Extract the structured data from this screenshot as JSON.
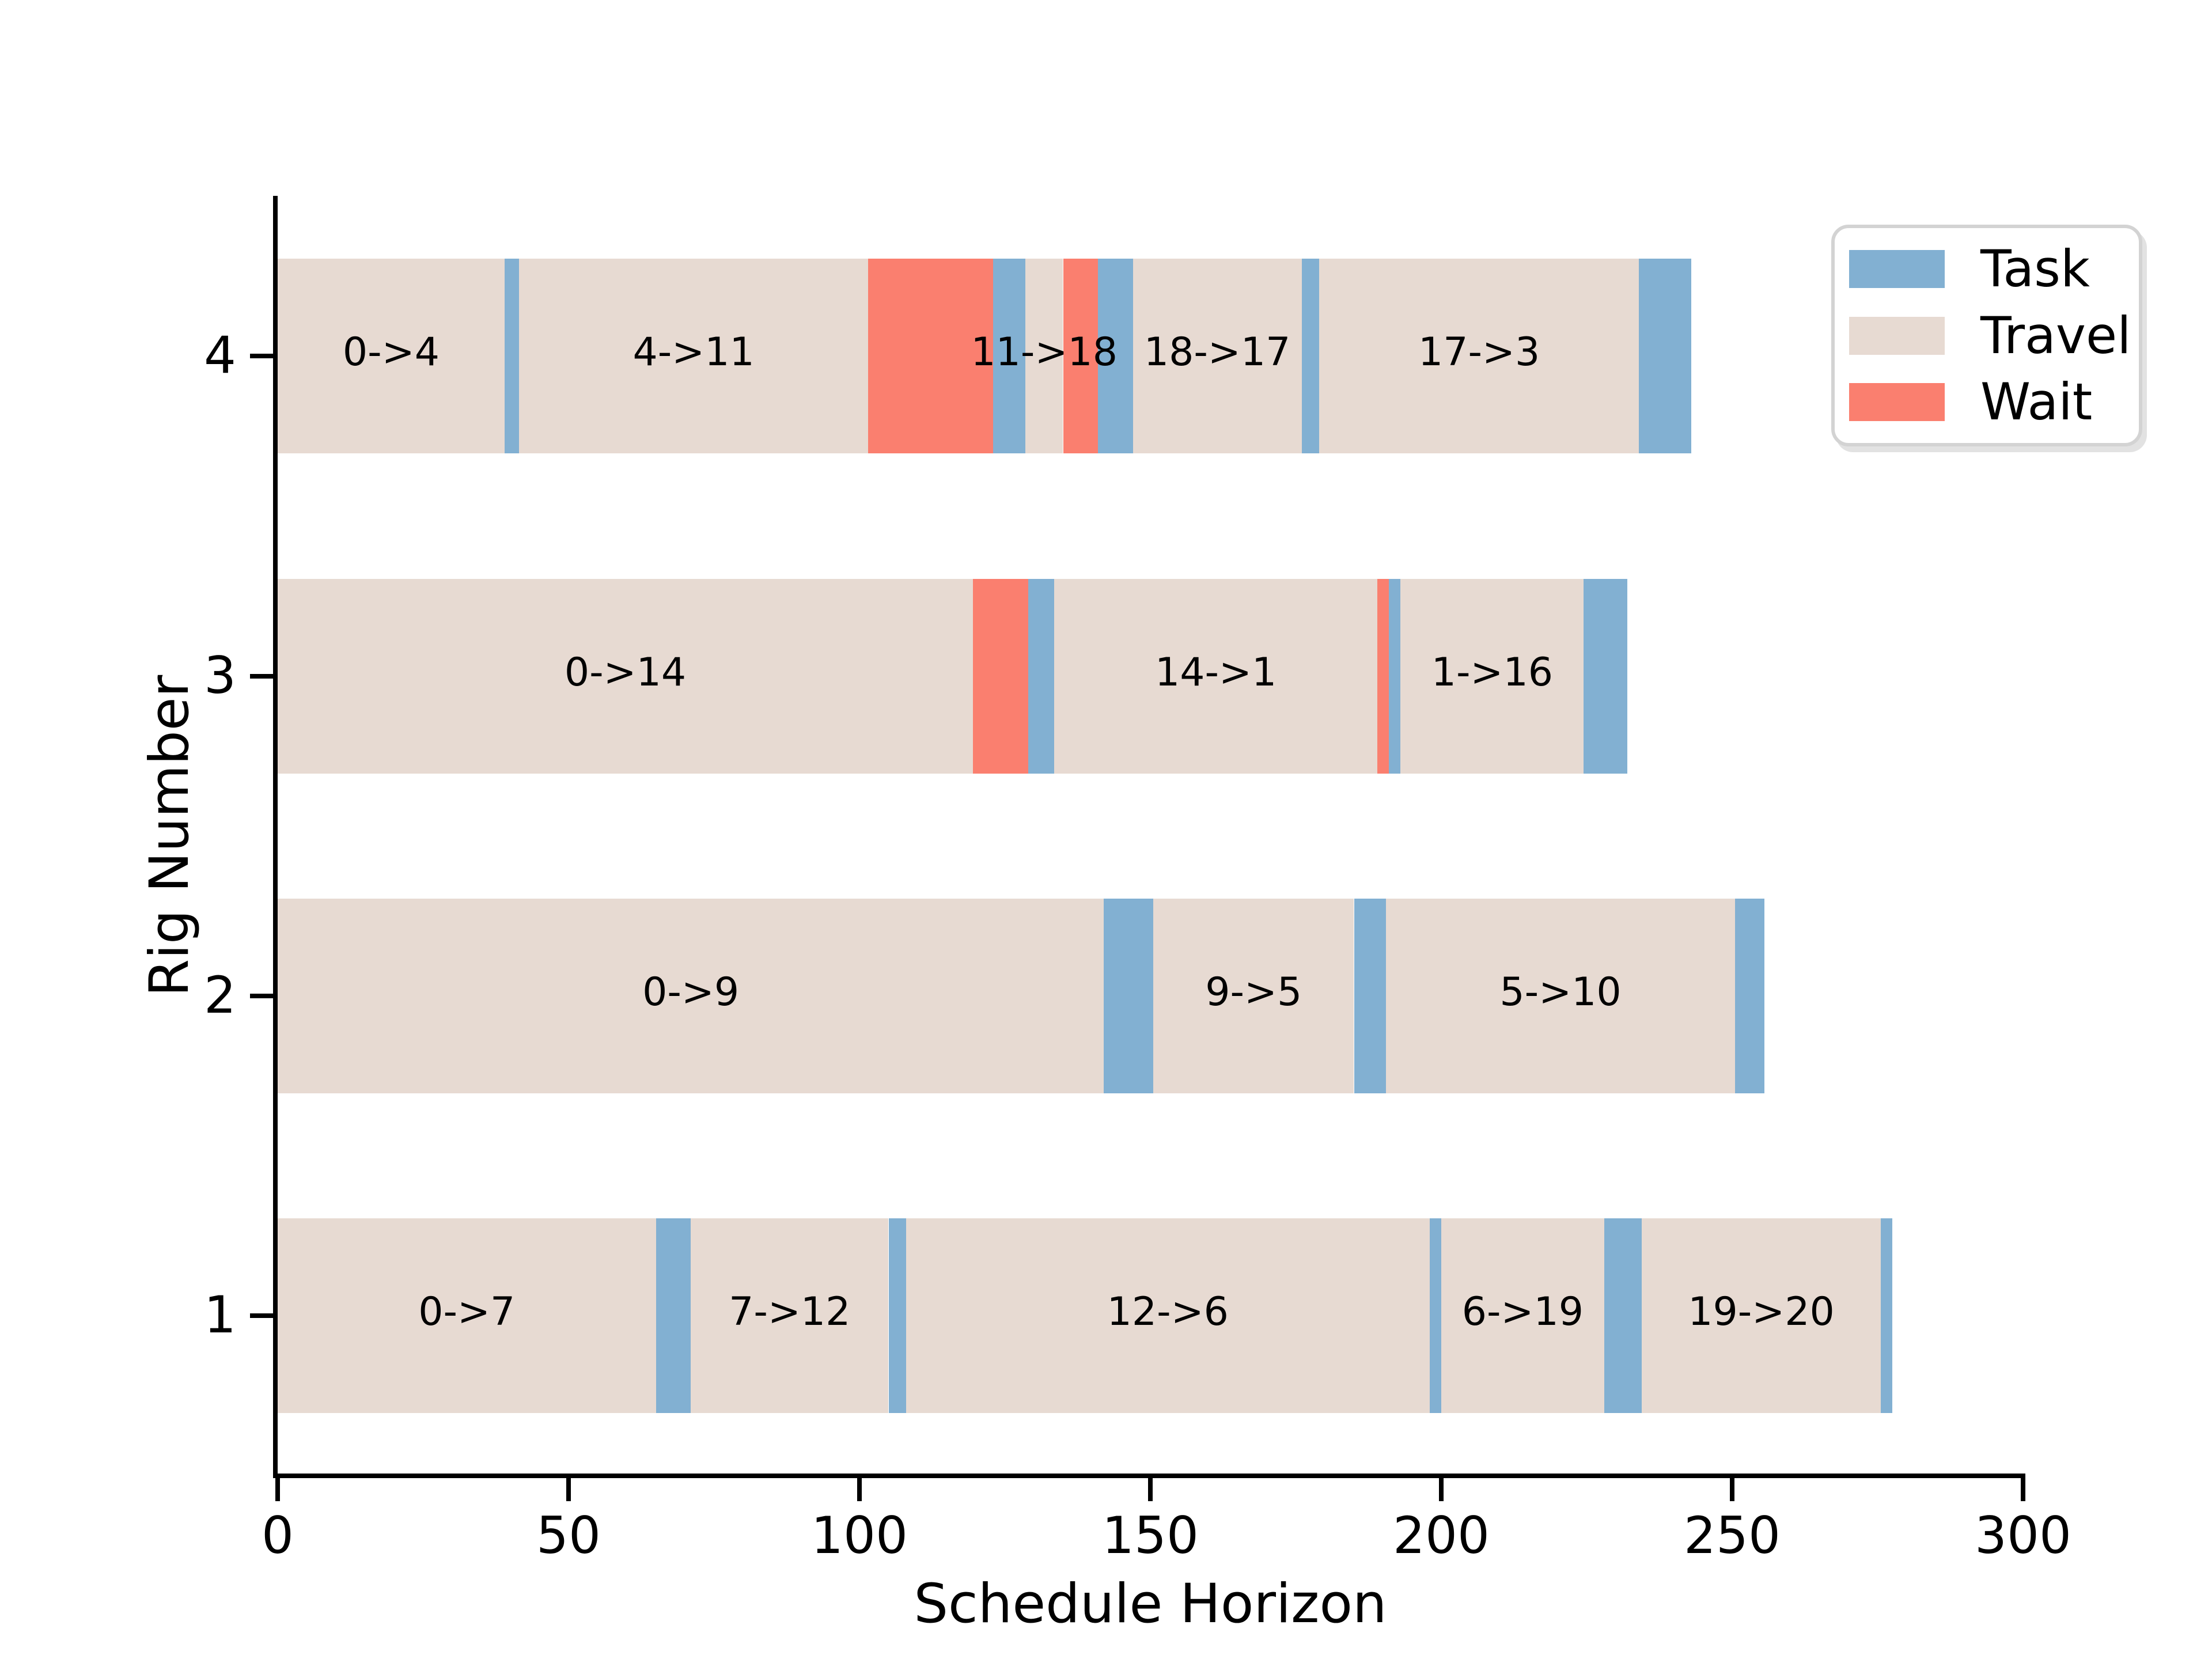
{
  "axes": {
    "xlabel": "Schedule Horizon",
    "ylabel": "Rig Number",
    "x_ticks": [
      0,
      50,
      100,
      150,
      200,
      250,
      300
    ],
    "y_ticks": [
      "1",
      "2",
      "3",
      "4"
    ],
    "xlim": [
      0,
      300
    ]
  },
  "colors": {
    "task": "#82B0D2",
    "travel": "#E7DAD2",
    "wait": "#FA7F6F",
    "axis": "#000000",
    "legend_border": "#D3D3D3"
  },
  "legend": {
    "entries": [
      {
        "label": "Task",
        "color": "#82B0D2"
      },
      {
        "label": "Travel",
        "color": "#E7DAD2"
      },
      {
        "label": "Wait",
        "color": "#FA7F6F"
      }
    ]
  },
  "chart_data": {
    "type": "bar",
    "variant": "gantt-schedule",
    "title": "",
    "xlabel": "Schedule Horizon",
    "ylabel": "Rig Number",
    "xlim": [
      0,
      300
    ],
    "x_ticks": [
      0,
      50,
      100,
      150,
      200,
      250,
      300
    ],
    "legend_entries": [
      "Task",
      "Travel",
      "Wait"
    ],
    "legend_position": "upper right",
    "grid": false,
    "rigs": [
      {
        "rig": 4,
        "segments": [
          {
            "kind": "travel",
            "label": "0->4",
            "start": 0,
            "end": 39
          },
          {
            "kind": "task",
            "label": "",
            "start": 39,
            "end": 41.5
          },
          {
            "kind": "travel",
            "label": "4->11",
            "start": 41.5,
            "end": 101.5
          },
          {
            "kind": "wait",
            "label": "",
            "start": 101.5,
            "end": 123
          },
          {
            "kind": "task",
            "label": "",
            "start": 123,
            "end": 128.5
          },
          {
            "kind": "travel",
            "label": "11->18",
            "start": 128.5,
            "end": 135
          },
          {
            "kind": "wait",
            "label": "",
            "start": 135,
            "end": 141
          },
          {
            "kind": "task",
            "label": "",
            "start": 141,
            "end": 147
          },
          {
            "kind": "travel",
            "label": "18->17",
            "start": 147,
            "end": 176
          },
          {
            "kind": "task",
            "label": "",
            "start": 176,
            "end": 179
          },
          {
            "kind": "travel",
            "label": "17->3",
            "start": 179,
            "end": 234
          },
          {
            "kind": "task",
            "label": "",
            "start": 234,
            "end": 243
          }
        ]
      },
      {
        "rig": 3,
        "segments": [
          {
            "kind": "travel",
            "label": "0->14",
            "start": 0,
            "end": 119.5
          },
          {
            "kind": "wait",
            "label": "",
            "start": 119.5,
            "end": 129
          },
          {
            "kind": "task",
            "label": "",
            "start": 129,
            "end": 133.5
          },
          {
            "kind": "travel",
            "label": "14->1",
            "start": 133.5,
            "end": 189
          },
          {
            "kind": "wait",
            "label": "",
            "start": 189,
            "end": 191
          },
          {
            "kind": "task",
            "label": "",
            "start": 191,
            "end": 193
          },
          {
            "kind": "travel",
            "label": "1->16",
            "start": 193,
            "end": 224.5
          },
          {
            "kind": "task",
            "label": "",
            "start": 224.5,
            "end": 232
          }
        ]
      },
      {
        "rig": 2,
        "segments": [
          {
            "kind": "travel",
            "label": "0->9",
            "start": 0,
            "end": 142
          },
          {
            "kind": "task",
            "label": "",
            "start": 142,
            "end": 150.5
          },
          {
            "kind": "travel",
            "label": "9->5",
            "start": 150.5,
            "end": 185
          },
          {
            "kind": "task",
            "label": "",
            "start": 185,
            "end": 190.5
          },
          {
            "kind": "travel",
            "label": "5->10",
            "start": 190.5,
            "end": 250.5
          },
          {
            "kind": "task",
            "label": "",
            "start": 250.5,
            "end": 255.5
          }
        ]
      },
      {
        "rig": 1,
        "segments": [
          {
            "kind": "travel",
            "label": "0->7",
            "start": 0,
            "end": 65
          },
          {
            "kind": "task",
            "label": "",
            "start": 65,
            "end": 71
          },
          {
            "kind": "travel",
            "label": "7->12",
            "start": 71,
            "end": 105
          },
          {
            "kind": "task",
            "label": "",
            "start": 105,
            "end": 108
          },
          {
            "kind": "travel",
            "label": "12->6",
            "start": 108,
            "end": 198
          },
          {
            "kind": "task",
            "label": "",
            "start": 198,
            "end": 200
          },
          {
            "kind": "travel",
            "label": "6->19",
            "start": 200,
            "end": 228
          },
          {
            "kind": "task",
            "label": "",
            "start": 228,
            "end": 234.5
          },
          {
            "kind": "travel",
            "label": "19->20",
            "start": 234.5,
            "end": 275.5
          },
          {
            "kind": "task",
            "label": "",
            "start": 275.5,
            "end": 277.5
          }
        ]
      }
    ]
  }
}
